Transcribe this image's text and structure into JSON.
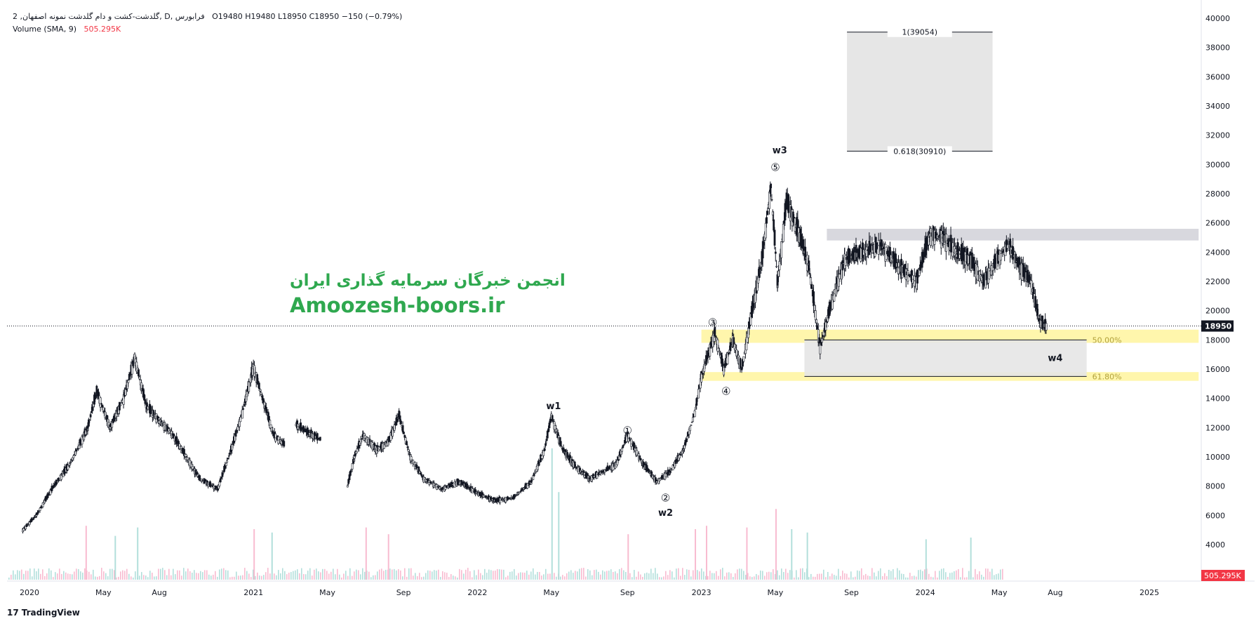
{
  "header": {
    "symbol_line": "گلدشت-کشت و دام گلدشت نمونه اصفهان, 2, D, فرابورس",
    "ohlc": "O19480  H19480  L18950  C18950  −150 (−0.79%)",
    "volume_label": "Volume (SMA, 9)",
    "volume_value": "505.295K"
  },
  "watermark": {
    "line1": "انجمن خبرگان سرمایه گذاری ایران",
    "line2": "Amoozesh-boors.ir"
  },
  "brand": "TradingView",
  "colors": {
    "candle": "#131722",
    "zone_yellow": "#fff59d",
    "box_gray": "#e6e6e6",
    "vol_up": "#b2dfdb",
    "vol_down": "#f8bbd0",
    "accent_red": "#f23645",
    "watermark_green": "#2fa84f"
  },
  "chart_data": {
    "type": "candlestick",
    "y_axis": {
      "ticks": [
        4000,
        6000,
        8000,
        10000,
        12000,
        14000,
        16000,
        18000,
        20000,
        22000,
        24000,
        26000,
        28000,
        30000,
        32000,
        34000,
        36000,
        38000,
        40000
      ],
      "range": [
        2000,
        41000
      ],
      "last_price": 18950,
      "last_price_label": "18950",
      "volume_label": "505.295K"
    },
    "x_axis": {
      "ticks": [
        {
          "label": "2020",
          "t": 2020.0
        },
        {
          "label": "May",
          "t": 2020.33
        },
        {
          "label": "Aug",
          "t": 2020.58
        },
        {
          "label": "2021",
          "t": 2021.0
        },
        {
          "label": "May",
          "t": 2021.33
        },
        {
          "label": "Sep",
          "t": 2021.67
        },
        {
          "label": "2022",
          "t": 2022.0
        },
        {
          "label": "May",
          "t": 2022.33
        },
        {
          "label": "Sep",
          "t": 2022.67
        },
        {
          "label": "2023",
          "t": 2023.0
        },
        {
          "label": "May",
          "t": 2023.33
        },
        {
          "label": "Sep",
          "t": 2023.67
        },
        {
          "label": "2024",
          "t": 2024.0
        },
        {
          "label": "May",
          "t": 2024.33
        },
        {
          "label": "Aug",
          "t": 2024.58
        },
        {
          "label": "2025",
          "t": 2025.0
        }
      ]
    },
    "price_path": [
      [
        2019.97,
        5000
      ],
      [
        2020.03,
        6000
      ],
      [
        2020.1,
        7800
      ],
      [
        2020.18,
        9500
      ],
      [
        2020.26,
        12000
      ],
      [
        2020.3,
        14500
      ],
      [
        2020.36,
        12000
      ],
      [
        2020.42,
        14000
      ],
      [
        2020.47,
        16800
      ],
      [
        2020.52,
        13500
      ],
      [
        2020.58,
        12500
      ],
      [
        2020.64,
        11500
      ],
      [
        2020.7,
        10000
      ],
      [
        2020.76,
        8500
      ],
      [
        2020.84,
        7800
      ],
      [
        2020.9,
        10500
      ],
      [
        2020.95,
        13000
      ],
      [
        2021.0,
        16200
      ],
      [
        2021.04,
        14000
      ],
      [
        2021.09,
        11500
      ],
      [
        2021.14,
        10800
      ],
      null,
      [
        2021.19,
        12200
      ],
      [
        2021.26,
        11500
      ],
      [
        2021.3,
        11200
      ],
      null,
      [
        2021.42,
        8000
      ],
      [
        2021.45,
        10000
      ],
      [
        2021.49,
        11500
      ],
      [
        2021.55,
        10500
      ],
      [
        2021.6,
        11000
      ],
      [
        2021.65,
        12800
      ],
      [
        2021.7,
        10000
      ],
      [
        2021.76,
        8500
      ],
      [
        2021.84,
        7800
      ],
      [
        2021.92,
        8300
      ],
      [
        2022.0,
        7500
      ],
      [
        2022.08,
        7000
      ],
      [
        2022.16,
        7200
      ],
      [
        2022.24,
        8300
      ],
      [
        2022.3,
        10500
      ],
      [
        2022.33,
        12800
      ],
      [
        2022.38,
        10500
      ],
      [
        2022.44,
        9300
      ],
      [
        2022.5,
        8500
      ],
      [
        2022.56,
        9000
      ],
      [
        2022.62,
        9500
      ],
      [
        2022.67,
        11500
      ],
      [
        2022.74,
        9500
      ],
      [
        2022.8,
        8300
      ],
      [
        2022.86,
        9000
      ],
      [
        2022.92,
        10500
      ],
      [
        2022.97,
        13000
      ],
      [
        2023.0,
        15500
      ],
      [
        2023.06,
        18500
      ],
      [
        2023.1,
        16000
      ],
      [
        2023.14,
        18000
      ],
      [
        2023.18,
        16000
      ],
      [
        2023.22,
        19500
      ],
      [
        2023.27,
        23500
      ],
      [
        2023.31,
        28500
      ],
      [
        2023.34,
        22000
      ],
      [
        2023.38,
        27500
      ],
      [
        2023.43,
        25500
      ],
      [
        2023.48,
        23000
      ],
      [
        2023.53,
        17500
      ],
      [
        2023.58,
        20500
      ],
      [
        2023.64,
        23500
      ],
      [
        2023.72,
        24000
      ],
      [
        2023.8,
        24500
      ],
      [
        2023.88,
        23000
      ],
      [
        2023.96,
        22000
      ],
      [
        2024.02,
        25200
      ],
      [
        2024.08,
        25000
      ],
      [
        2024.14,
        24000
      ],
      [
        2024.2,
        23500
      ],
      [
        2024.26,
        22000
      ],
      [
        2024.32,
        23500
      ],
      [
        2024.37,
        24500
      ],
      [
        2024.42,
        23000
      ],
      [
        2024.47,
        22000
      ],
      [
        2024.51,
        19200
      ],
      [
        2024.54,
        18950
      ]
    ],
    "volume_spikes": [
      [
        2020.25,
        3200
      ],
      [
        2020.38,
        2600
      ],
      [
        2020.48,
        3100
      ],
      [
        2021.0,
        3000
      ],
      [
        2021.08,
        2800
      ],
      [
        2021.5,
        3100
      ],
      [
        2021.6,
        2700
      ],
      [
        2022.33,
        7800
      ],
      [
        2022.36,
        5200
      ],
      [
        2022.67,
        2700
      ],
      [
        2022.97,
        3000
      ],
      [
        2023.02,
        3200
      ],
      [
        2023.2,
        3100
      ],
      [
        2023.33,
        4200
      ],
      [
        2023.4,
        3000
      ],
      [
        2023.47,
        2800
      ],
      [
        2024.0,
        2400
      ],
      [
        2024.2,
        2500
      ]
    ],
    "fib_extension": {
      "t_start": 2023.65,
      "t_end": 2024.3,
      "levels": [
        {
          "price": 39054,
          "label": "1(39054)"
        },
        {
          "price": 30910,
          "label": "0.618(30910)"
        }
      ]
    },
    "resistance_zone": {
      "t_start": 2023.56,
      "t_end": 2025.22,
      "low": 24800,
      "high": 25600
    },
    "fib_retracement": {
      "t_start": 2023.46,
      "t_end": 2024.72,
      "levels": [
        {
          "price": 18000,
          "label": "50.00%"
        },
        {
          "price": 15500,
          "label": "61.80%"
        }
      ]
    },
    "support_zones": [
      {
        "t_start": 2023.0,
        "t_end": 2025.22,
        "low": 17800,
        "high": 18700
      },
      {
        "t_start": 2023.0,
        "t_end": 2025.22,
        "low": 15200,
        "high": 15800
      }
    ],
    "annotations": [
      {
        "label": "w1",
        "t": 2022.34,
        "price": 13500,
        "circled": false
      },
      {
        "label": "①",
        "t": 2022.67,
        "price": 11800,
        "circled": true
      },
      {
        "label": "②",
        "t": 2022.84,
        "price": 7200,
        "circled": true
      },
      {
        "label": "w2",
        "t": 2022.84,
        "price": 6200,
        "circled": false
      },
      {
        "label": "③",
        "t": 2023.05,
        "price": 19200,
        "circled": true
      },
      {
        "label": "④",
        "t": 2023.11,
        "price": 14500,
        "circled": true
      },
      {
        "label": "⑤",
        "t": 2023.33,
        "price": 29800,
        "circled": true
      },
      {
        "label": "w3",
        "t": 2023.35,
        "price": 31000,
        "circled": false
      },
      {
        "label": "w4",
        "t": 2024.58,
        "price": 16800,
        "circled": false
      }
    ]
  }
}
